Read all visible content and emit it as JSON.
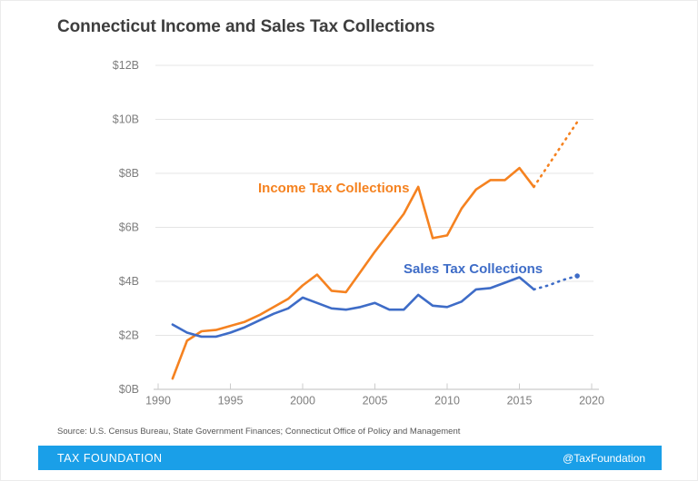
{
  "header": {
    "title": "Connecticut Income and Sales Tax Collections"
  },
  "chart_data": {
    "type": "line",
    "title": "Connecticut Income and Sales Tax Collections",
    "units": "billions of dollars",
    "xlim": [
      1990,
      2020
    ],
    "ylim": [
      0,
      12
    ],
    "grid": true,
    "legend": "inline series labels",
    "x_tick_values": [
      1990,
      1995,
      2000,
      2005,
      2010,
      2015,
      2020
    ],
    "x_tick_labels": [
      "1990",
      "1995",
      "2000",
      "2005",
      "2010",
      "2015",
      "2020"
    ],
    "y_tick_values": [
      0,
      2,
      4,
      6,
      8,
      10,
      12
    ],
    "y_tick_labels": [
      "$0B",
      "$2B",
      "$4B",
      "$6B",
      "$8B",
      "$10B",
      "$12B"
    ],
    "series_labels": {
      "income": "Income Tax Collections",
      "sales": "Sales Tax Collections"
    },
    "colors": {
      "income": "#f58220",
      "sales": "#3e6cc7"
    },
    "series": [
      {
        "name": "Income Tax Collections",
        "color": "#f58220",
        "line_style": "solid",
        "x": [
          1991,
          1992,
          1993,
          1994,
          1995,
          1996,
          1997,
          1998,
          1999,
          2000,
          2001,
          2002,
          2003,
          2004,
          2005,
          2006,
          2007,
          2008,
          2009,
          2010,
          2011,
          2012,
          2013,
          2014,
          2015,
          2016
        ],
        "values": [
          0.4,
          1.8,
          2.15,
          2.2,
          2.35,
          2.5,
          2.75,
          3.05,
          3.35,
          3.85,
          4.25,
          3.65,
          3.6,
          4.35,
          5.1,
          5.8,
          6.5,
          7.5,
          5.6,
          5.7,
          6.7,
          7.4,
          7.75,
          7.75,
          8.2,
          7.5
        ]
      },
      {
        "name": "Income Tax Collections (projection)",
        "color": "#f58220",
        "line_style": "dotted",
        "x": [
          2016,
          2017,
          2018,
          2019
        ],
        "values": [
          7.5,
          8.3,
          9.1,
          9.9
        ]
      },
      {
        "name": "Sales Tax Collections",
        "color": "#3e6cc7",
        "line_style": "solid",
        "x": [
          1991,
          1992,
          1993,
          1994,
          1995,
          1996,
          1997,
          1998,
          1999,
          2000,
          2001,
          2002,
          2003,
          2004,
          2005,
          2006,
          2007,
          2008,
          2009,
          2010,
          2011,
          2012,
          2013,
          2014,
          2015,
          2016
        ],
        "values": [
          2.4,
          2.1,
          1.95,
          1.95,
          2.1,
          2.3,
          2.55,
          2.8,
          3.0,
          3.4,
          3.2,
          3.0,
          2.95,
          3.05,
          3.2,
          2.95,
          2.95,
          3.5,
          3.1,
          3.05,
          3.25,
          3.7,
          3.75,
          3.95,
          4.15,
          3.7
        ]
      },
      {
        "name": "Sales Tax Collections (projection)",
        "color": "#3e6cc7",
        "line_style": "dotted",
        "end_dot": true,
        "x": [
          2016,
          2017,
          2018,
          2019
        ],
        "values": [
          3.7,
          3.85,
          4.05,
          4.2
        ]
      }
    ]
  },
  "source": "Source: U.S. Census Bureau, State Government Finances; Connecticut Office of Policy and Management",
  "footer": {
    "brand": "TAX FOUNDATION",
    "handle": "@TaxFoundation",
    "bar_color": "#1a9fe8"
  }
}
